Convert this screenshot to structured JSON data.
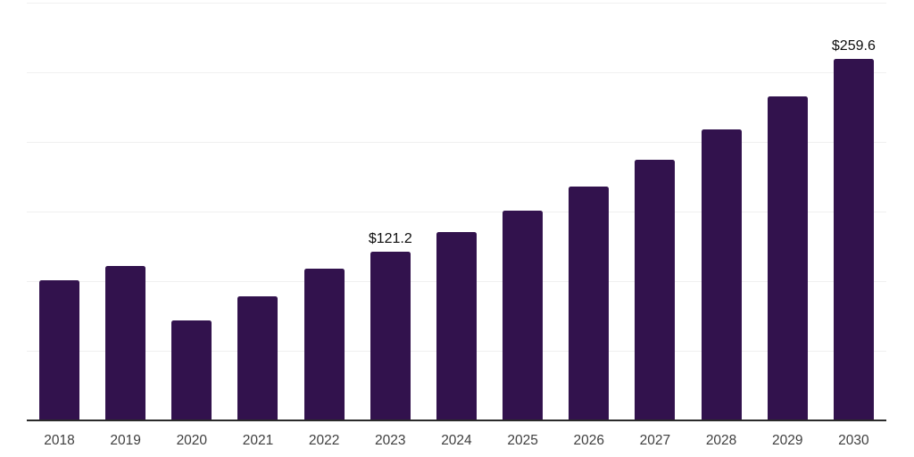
{
  "chart_data": {
    "type": "bar",
    "title": "",
    "xlabel": "",
    "ylabel": "",
    "categories": [
      "2018",
      "2019",
      "2020",
      "2021",
      "2022",
      "2023",
      "2024",
      "2025",
      "2026",
      "2027",
      "2028",
      "2029",
      "2030"
    ],
    "values": [
      100.9,
      111.2,
      71.5,
      89.0,
      109.2,
      121.2,
      135.1,
      150.7,
      168.0,
      187.3,
      208.9,
      232.9,
      259.6
    ],
    "value_labels": [
      "",
      "",
      "",
      "",
      "",
      "$121.2",
      "",
      "",
      "",
      "",
      "",
      "",
      "$259.6"
    ],
    "ylim": [
      0,
      300
    ],
    "grid_step": 50,
    "grid": true,
    "legend": false,
    "bar_color": "#32124d",
    "gridline_color": "#f0f0f0",
    "axis_color": "#2b2b2b",
    "tick_label_color": "#3f3f3f",
    "value_label_color": "#0d0d0d"
  }
}
